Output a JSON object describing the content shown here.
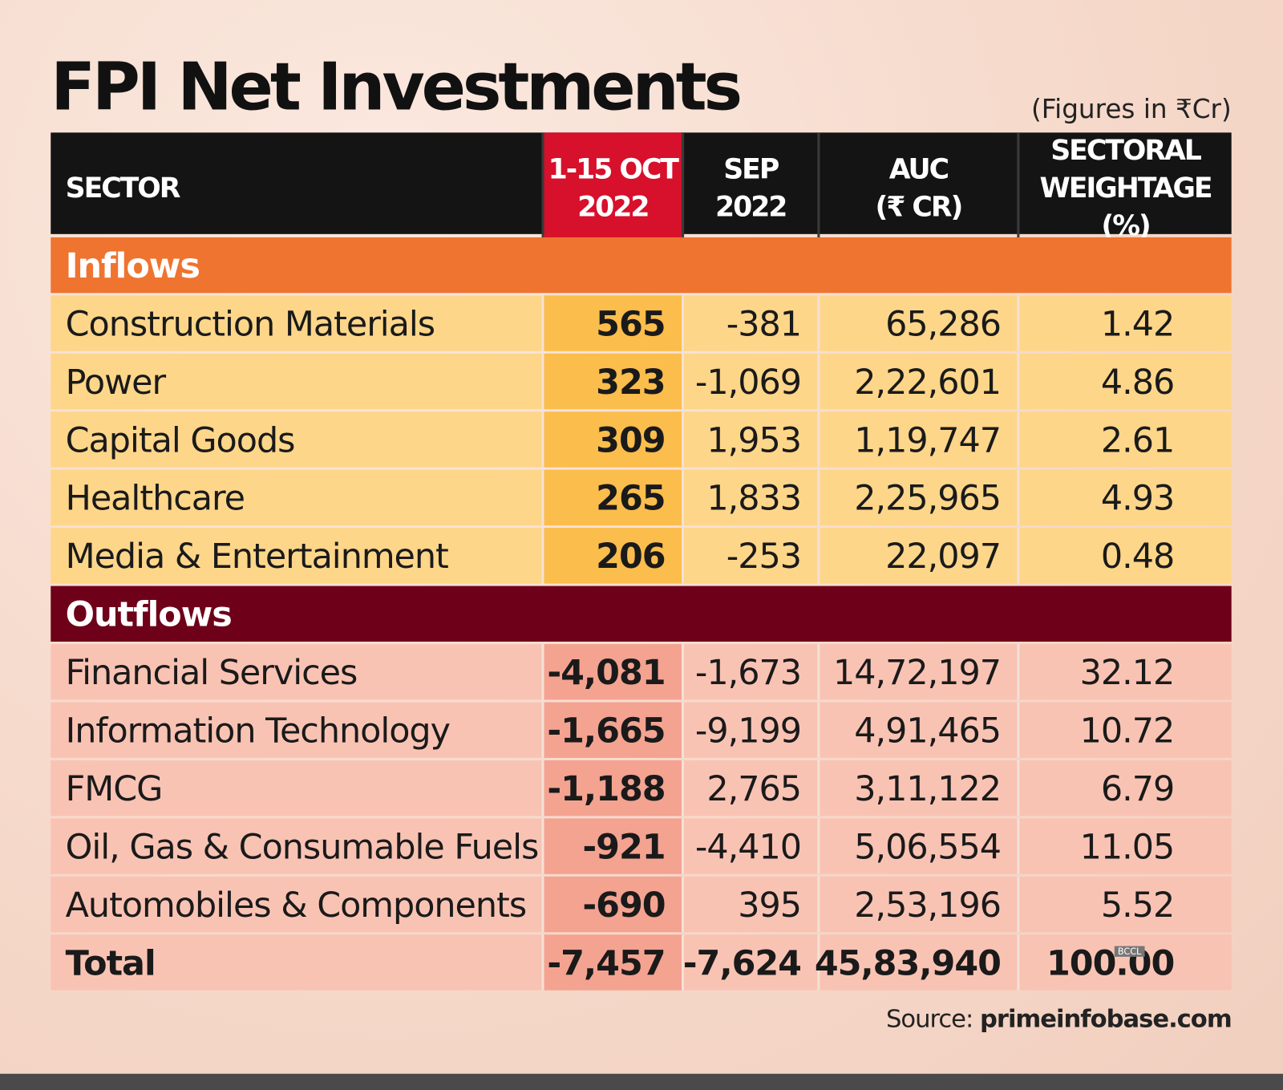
{
  "title": "FPI Net Investments",
  "note": "(Figures in ₹Cr)",
  "table": {
    "columns": [
      [
        "SECTOR"
      ],
      [
        "1-15 OCT",
        "2022"
      ],
      [
        "SEP",
        "2022"
      ],
      [
        "AUC",
        "(₹ CR)"
      ],
      [
        "SECTORAL",
        "WEIGHTAGE (%)"
      ]
    ],
    "inflows": {
      "label": "Inflows",
      "rows": [
        [
          "Construction Materials",
          "565",
          "-381",
          "65,286",
          "1.42"
        ],
        [
          "Power",
          "323",
          "-1,069",
          "2,22,601",
          "4.86"
        ],
        [
          "Capital Goods",
          "309",
          "1,953",
          "1,19,747",
          "2.61"
        ],
        [
          "Healthcare",
          "265",
          "1,833",
          "2,25,965",
          "4.93"
        ],
        [
          "Media & Entertainment",
          "206",
          "-253",
          "22,097",
          "0.48"
        ]
      ]
    },
    "outflows": {
      "label": "Outflows",
      "rows": [
        [
          "Financial Services",
          "-4,081",
          "-1,673",
          "14,72,197",
          "32.12"
        ],
        [
          "Information Technology",
          "-1,665",
          "-9,199",
          "4,91,465",
          "10.72"
        ],
        [
          "FMCG",
          "-1,188",
          "2,765",
          "3,11,122",
          "6.79"
        ],
        [
          "Oil, Gas & Consumable Fuels",
          "-921",
          "-4,410",
          "5,06,554",
          "11.05"
        ],
        [
          "Automobiles & Components",
          "-690",
          "395",
          "2,53,196",
          "5.52"
        ]
      ]
    },
    "total": [
      "Total",
      "-7,457",
      "-7,624",
      "45,83,940",
      "100.00"
    ]
  },
  "watermark": "BCCL",
  "source": {
    "label": "Source:",
    "site": "primeinfobase.com"
  }
}
